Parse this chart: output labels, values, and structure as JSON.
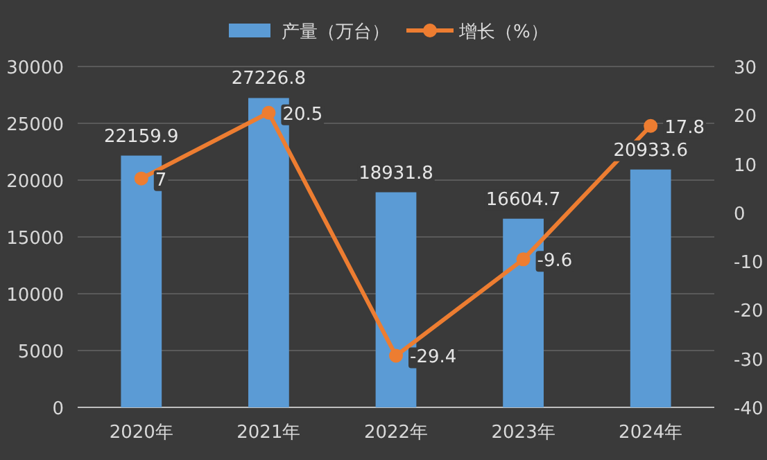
{
  "chart_data": {
    "type": "bar",
    "categories": [
      "2020年",
      "2021年",
      "2022年",
      "2023年",
      "2024年"
    ],
    "series": [
      {
        "name": "产量（万台）",
        "color": "#5b9bd5",
        "values": [
          22159.9,
          27226.8,
          18931.8,
          16604.7,
          20933.6
        ]
      },
      {
        "name": "增长（%）",
        "type": "line",
        "axis": "y2",
        "color": "#ed7d31",
        "marker": "circle",
        "values": [
          7,
          20.5,
          -29.4,
          -9.6,
          17.8
        ]
      }
    ],
    "ylim": [
      0,
      30000
    ],
    "yticks": [
      0,
      5000,
      10000,
      15000,
      20000,
      25000,
      30000
    ],
    "y2lim": [
      -40,
      30
    ],
    "y2ticks": [
      -40,
      -30,
      -20,
      -10,
      0,
      10,
      20,
      30
    ],
    "data_labels": true,
    "legend": "top",
    "grid": "y"
  }
}
